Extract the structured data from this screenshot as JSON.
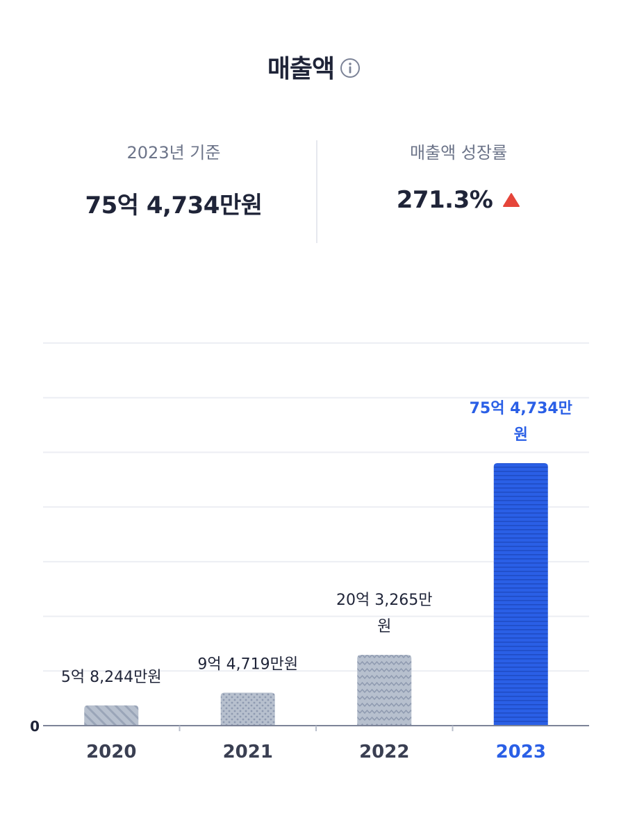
{
  "header": {
    "title": "매출액",
    "info_icon": "info-icon"
  },
  "stats": {
    "base": {
      "label": "2023년 기준",
      "value": "75억 4,734만원"
    },
    "growth": {
      "label": "매출액 성장률",
      "value": "271.3%",
      "trend_icon": "triangle-up-icon",
      "trend_color": "#e5453a"
    }
  },
  "colors": {
    "accent": "#2a5fe6",
    "bar_gray": "#b3bccb",
    "text_dark": "#1f2438",
    "grid": "#eceef3"
  },
  "chart_data": {
    "type": "bar",
    "title": "",
    "xlabel": "",
    "ylabel": "",
    "categories": [
      "2020",
      "2021",
      "2022",
      "2023"
    ],
    "values": [
      58244,
      94719,
      203265,
      754734
    ],
    "unit": "만원",
    "data_labels": [
      [
        "5억 8,244만원"
      ],
      [
        "9억 4,719만원"
      ],
      [
        "20억 3,265만",
        "원"
      ],
      [
        "75억 4,734만",
        "원"
      ]
    ],
    "highlight_index": 3,
    "bar_patterns": [
      "diagonal",
      "dots",
      "zigzag",
      "horizontal-lines"
    ],
    "y_tick_labels": [
      "0"
    ],
    "ylim": [
      0,
      1100000
    ],
    "grid": true,
    "legend": "none"
  }
}
